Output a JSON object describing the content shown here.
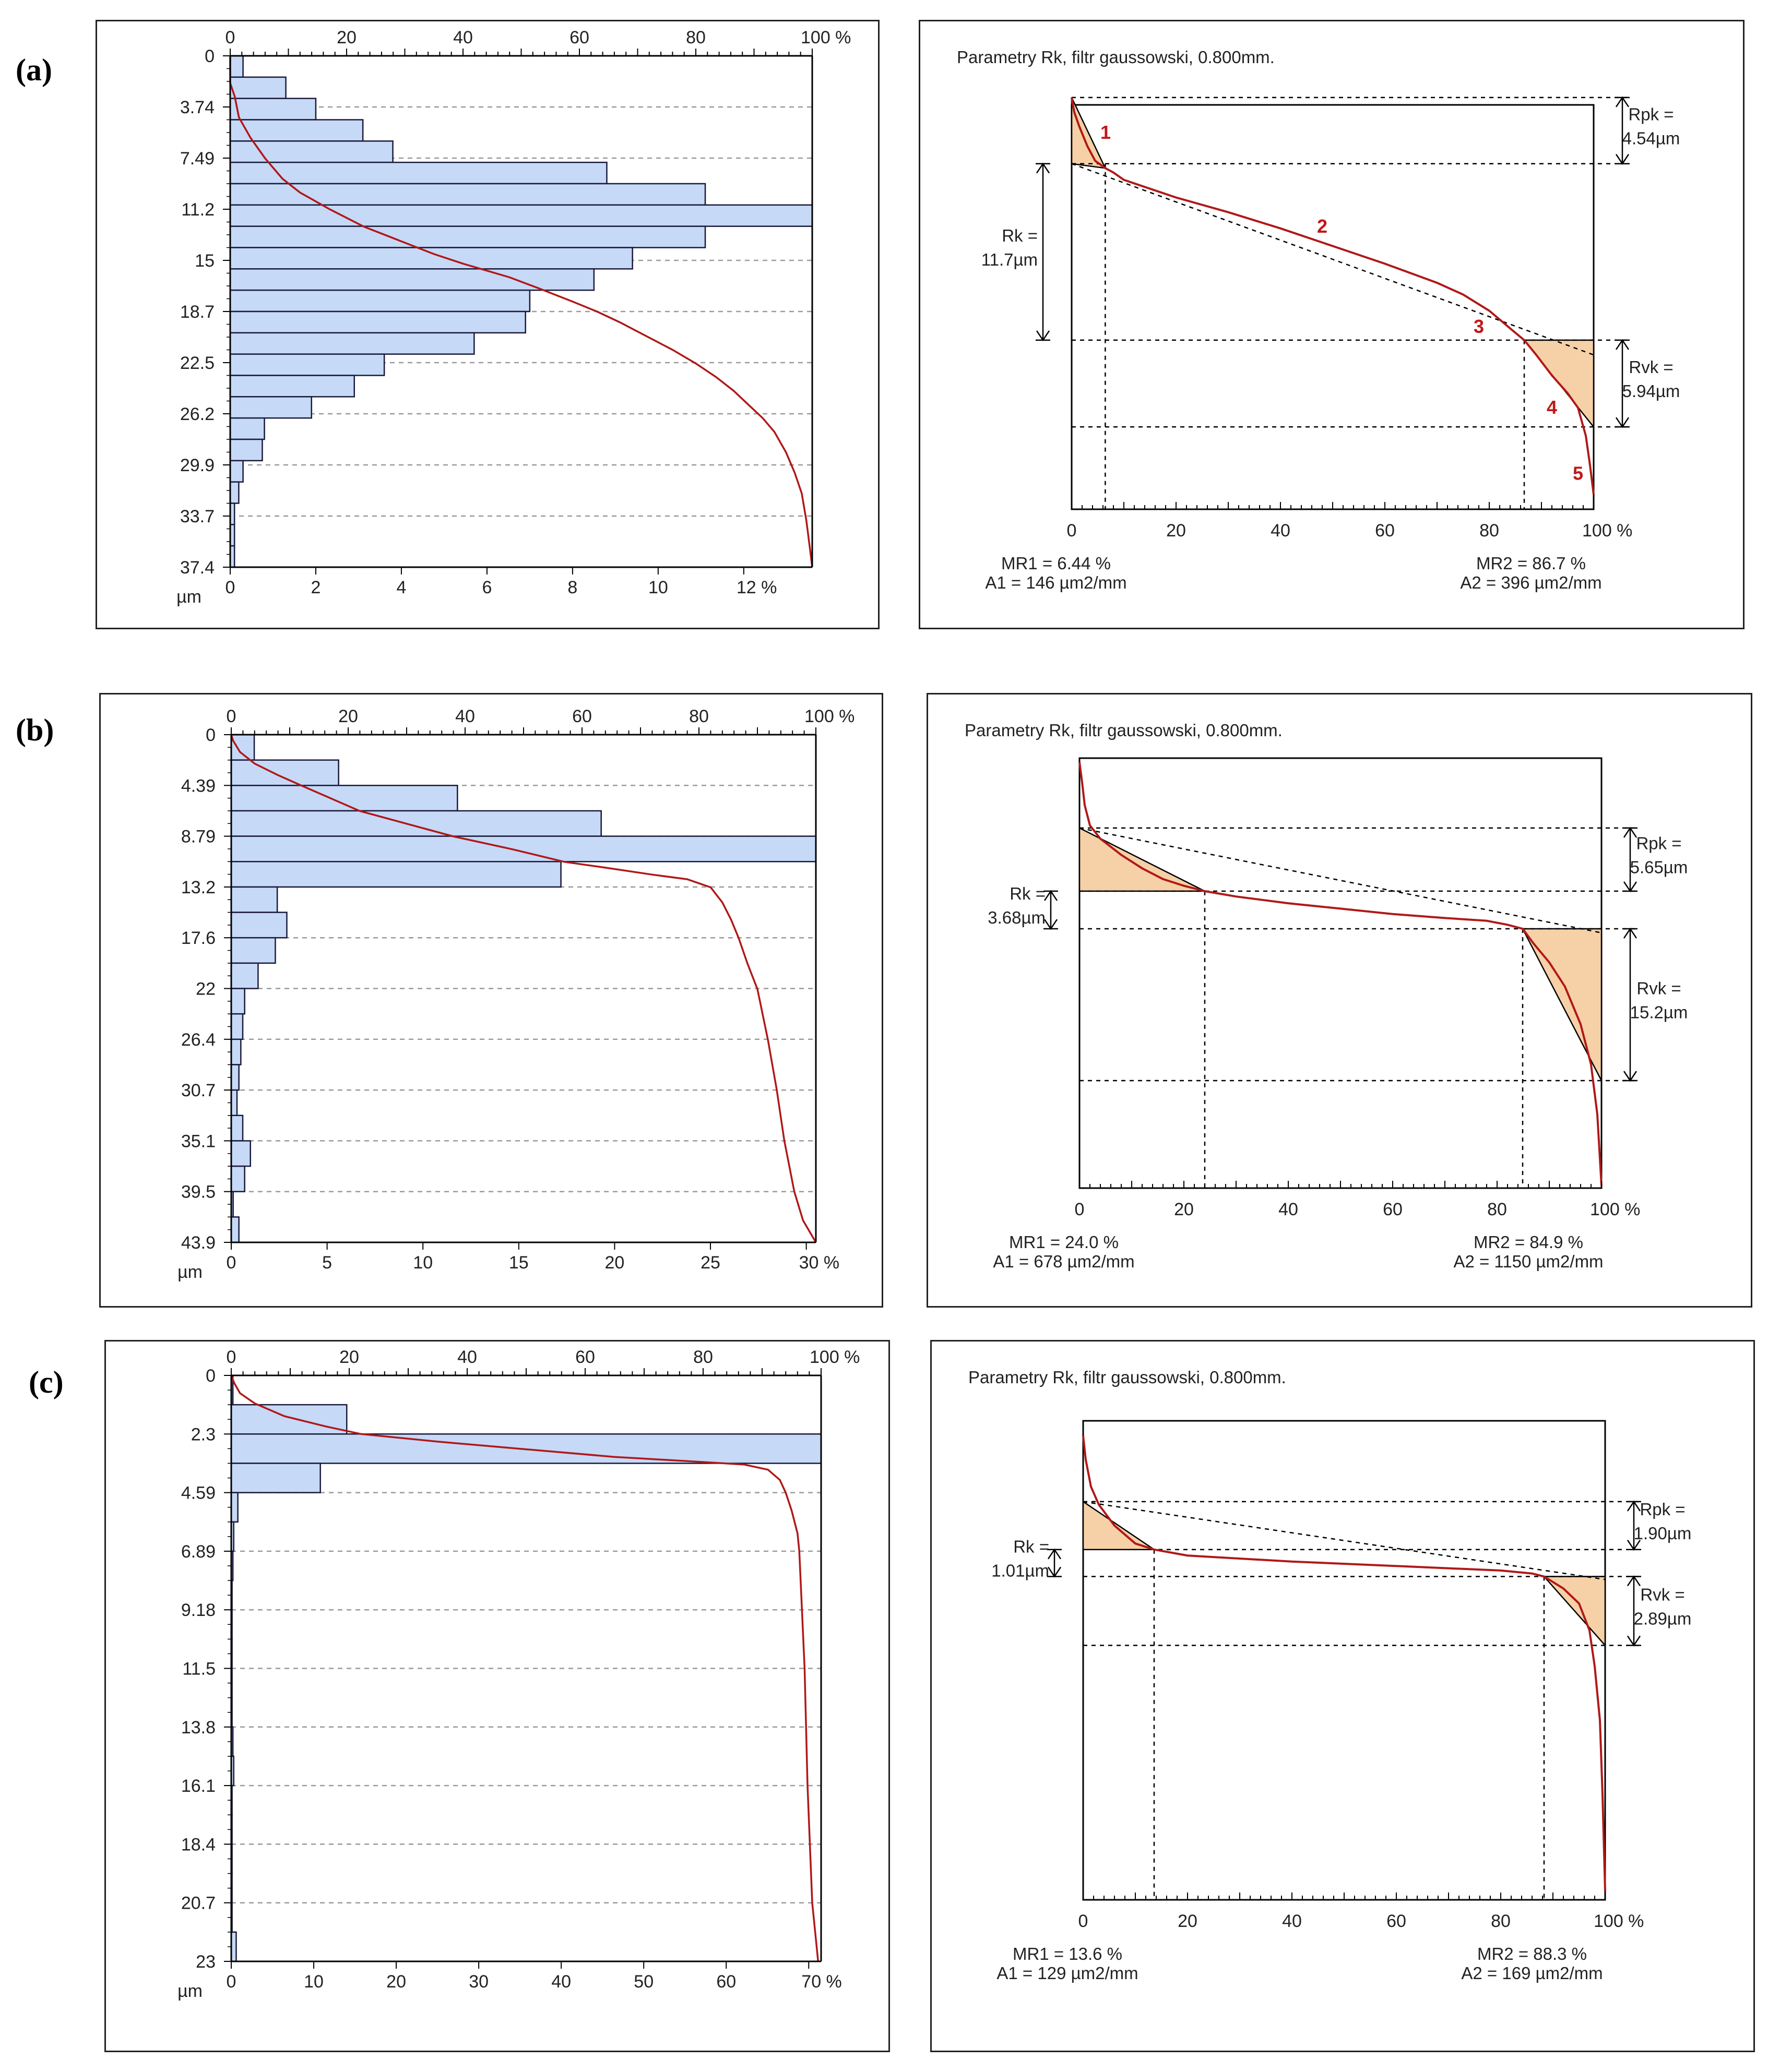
{
  "figure": {
    "panel_labels": [
      "(a)",
      "(b)",
      "(c)"
    ],
    "colors": {
      "bar_fill": "#c6d9f7",
      "bar_stroke": "#1a1a3a",
      "curve": "#b01818",
      "area_fill": "#f6d0a6",
      "grid": "#9a9a9a",
      "annotation": "#c01818"
    }
  },
  "chart_data": [
    {
      "panel": "(a)",
      "type": "bar",
      "orientation": "horizontal",
      "title": "",
      "top_axis": {
        "ticks": [
          "0",
          "20",
          "40",
          "60",
          "80",
          "100 %"
        ],
        "range": [
          0,
          100
        ]
      },
      "bottom_axis": {
        "unit": "µm",
        "ticks": [
          "0",
          "2",
          "4",
          "6",
          "8",
          "10",
          "12 %"
        ],
        "range": [
          0,
          13.6
        ]
      },
      "y_axis": {
        "ticks": [
          "0",
          "3.74",
          "7.49",
          "11.2",
          "15",
          "18.7",
          "22.5",
          "26.2",
          "29.9",
          "33.7",
          "37.4"
        ],
        "range": [
          0,
          37.4
        ]
      },
      "bins": 24,
      "values": [
        0.3,
        1.3,
        2.0,
        3.1,
        3.8,
        8.8,
        11.1,
        13.6,
        11.1,
        9.4,
        8.5,
        7.0,
        6.9,
        5.7,
        3.6,
        2.9,
        1.9,
        0.8,
        0.75,
        0.3,
        0.2,
        0.1,
        0.1,
        0.1
      ],
      "curve": {
        "series": "bearing ratio (%)",
        "points": [
          [
            0,
            0
          ],
          [
            2,
            0
          ],
          [
            3,
            0.8
          ],
          [
            4.5,
            1.5
          ],
          [
            6,
            3.5
          ],
          [
            7.5,
            6
          ],
          [
            9,
            9
          ],
          [
            10,
            12
          ],
          [
            11.2,
            17
          ],
          [
            12.5,
            23
          ],
          [
            13.5,
            29
          ],
          [
            14.5,
            35
          ],
          [
            15.2,
            40
          ],
          [
            16.2,
            48
          ],
          [
            17,
            53
          ],
          [
            18,
            59
          ],
          [
            18.7,
            63
          ],
          [
            19.5,
            67
          ],
          [
            20.5,
            71.5
          ],
          [
            21.5,
            76
          ],
          [
            22.5,
            80
          ],
          [
            23.5,
            83.5
          ],
          [
            24.5,
            86.5
          ],
          [
            25.5,
            89
          ],
          [
            26.5,
            91.5
          ],
          [
            27.5,
            93.5
          ],
          [
            29,
            95.5
          ],
          [
            30.5,
            97
          ],
          [
            32,
            98.2
          ],
          [
            34,
            99
          ],
          [
            36,
            99.6
          ],
          [
            37.4,
            100
          ]
        ]
      }
    },
    {
      "panel": "(a)",
      "type": "line",
      "title": "Parametry Rk, filtr gaussowski, 0.800mm.",
      "x_axis": {
        "ticks": [
          "0",
          "20",
          "40",
          "60",
          "80",
          "100 %"
        ],
        "range": [
          0,
          100
        ]
      },
      "y_range": [
        27.5,
        0
      ],
      "curve": [
        [
          0,
          -0.5
        ],
        [
          0.5,
          0.5
        ],
        [
          1.5,
          1.5
        ],
        [
          3,
          2.8
        ],
        [
          4.5,
          3.8
        ],
        [
          6.44,
          4.3
        ],
        [
          8,
          4.6
        ],
        [
          10,
          5.1
        ],
        [
          20,
          6.3
        ],
        [
          30,
          7.3
        ],
        [
          40,
          8.4
        ],
        [
          50,
          9.6
        ],
        [
          60,
          10.8
        ],
        [
          70,
          12.1
        ],
        [
          75,
          12.9
        ],
        [
          80,
          14.0
        ],
        [
          84,
          15.2
        ],
        [
          86.7,
          16.0
        ],
        [
          89,
          17.0
        ],
        [
          92,
          18.4
        ],
        [
          95,
          19.6
        ],
        [
          97,
          20.6
        ],
        [
          98.5,
          22.5
        ],
        [
          99.3,
          24.5
        ],
        [
          100,
          26.5
        ]
      ],
      "rk_line": [
        [
          0,
          4.0
        ],
        [
          100,
          17.0
        ]
      ],
      "upper_triangle": [
        [
          0,
          -0.5
        ],
        [
          0,
          4.0
        ],
        [
          6.44,
          4.3
        ]
      ],
      "lower_triangle": [
        [
          86.7,
          16.0
        ],
        [
          100,
          16.0
        ],
        [
          100,
          21.9
        ]
      ],
      "levels": {
        "top": -0.5,
        "rk_top": 4.0,
        "rk_bottom": 16.0,
        "rvk_bottom": 21.9
      },
      "mr_lines": [
        6.44,
        86.7
      ],
      "rpk_label": "Rpk =",
      "rpk_value": "4.54µm",
      "rk_label": "Rk =",
      "rk_value": "11.7µm",
      "rvk_label": "Rvk =",
      "rvk_value": "5.94µm",
      "mr1": "MR1 = 6.44 %",
      "a1": "A1 = 146 µm2/mm",
      "mr2": "MR2 = 86.7 %",
      "a2": "A2 = 396 µm2/mm",
      "markers": [
        {
          "label": "1",
          "x": 6.5,
          "y": 2.3
        },
        {
          "label": "2",
          "x": 48,
          "y": 8.7
        },
        {
          "label": "3",
          "x": 78,
          "y": 15.5
        },
        {
          "label": "4",
          "x": 92,
          "y": 21.0
        },
        {
          "label": "5",
          "x": 97,
          "y": 25.5
        }
      ]
    },
    {
      "panel": "(b)",
      "type": "bar",
      "orientation": "horizontal",
      "title": "",
      "top_axis": {
        "ticks": [
          "0",
          "20",
          "40",
          "60",
          "80",
          "100 %"
        ],
        "range": [
          0,
          100
        ]
      },
      "bottom_axis": {
        "unit": "µm",
        "ticks": [
          "0",
          "5",
          "10",
          "15",
          "20",
          "25",
          "30 %"
        ],
        "range": [
          0,
          30.5
        ]
      },
      "y_axis": {
        "ticks": [
          "0",
          "4.39",
          "8.79",
          "13.2",
          "17.6",
          "22",
          "26.4",
          "30.7",
          "35.1",
          "39.5",
          "43.9"
        ],
        "range": [
          0,
          43.9
        ]
      },
      "bins": 20,
      "values": [
        1.2,
        5.6,
        11.8,
        19.3,
        30.5,
        17.2,
        2.4,
        2.9,
        2.3,
        1.4,
        0.7,
        0.6,
        0.5,
        0.4,
        0.3,
        0.6,
        1.0,
        0.7,
        0.1,
        0.4
      ],
      "curve": {
        "series": "bearing ratio (%)",
        "points": [
          [
            0,
            0
          ],
          [
            0.5,
            0.3
          ],
          [
            1.5,
            1.5
          ],
          [
            2.5,
            4
          ],
          [
            3.5,
            8
          ],
          [
            4.4,
            12
          ],
          [
            5.5,
            17
          ],
          [
            6.6,
            22
          ],
          [
            7.7,
            30
          ],
          [
            8.8,
            38
          ],
          [
            9.9,
            48
          ],
          [
            11,
            57
          ],
          [
            11.5,
            64
          ],
          [
            12.1,
            72
          ],
          [
            12.5,
            78
          ],
          [
            13.2,
            82
          ],
          [
            14.5,
            84
          ],
          [
            16,
            85.5
          ],
          [
            17.6,
            86.8
          ],
          [
            19.8,
            88.3
          ],
          [
            22,
            90
          ],
          [
            26.4,
            91.8
          ],
          [
            30.7,
            93.3
          ],
          [
            35.1,
            94.6
          ],
          [
            39.5,
            96.3
          ],
          [
            42,
            97.8
          ],
          [
            43.9,
            100
          ]
        ]
      }
    },
    {
      "panel": "(b)",
      "type": "line",
      "title": "Parametry Rk, filtr gaussowski, 0.800mm.",
      "x_axis": {
        "ticks": [
          "0",
          "20",
          "40",
          "60",
          "80",
          "100 %"
        ],
        "range": [
          0,
          100
        ]
      },
      "y_range": [
        32,
        0
      ],
      "curve": [
        [
          0,
          0.3
        ],
        [
          0.5,
          1.8
        ],
        [
          1,
          3.5
        ],
        [
          2,
          5.0
        ],
        [
          4,
          6.0
        ],
        [
          8,
          7.2
        ],
        [
          12,
          8.2
        ],
        [
          16,
          9.0
        ],
        [
          20,
          9.5
        ],
        [
          24,
          9.9
        ],
        [
          30,
          10.3
        ],
        [
          40,
          10.8
        ],
        [
          50,
          11.2
        ],
        [
          60,
          11.6
        ],
        [
          70,
          11.9
        ],
        [
          78,
          12.1
        ],
        [
          82,
          12.4
        ],
        [
          84.9,
          12.7
        ],
        [
          87,
          13.8
        ],
        [
          90,
          15.2
        ],
        [
          93,
          17.0
        ],
        [
          96,
          19.8
        ],
        [
          98,
          22.8
        ],
        [
          99.2,
          26.5
        ],
        [
          100,
          31.8
        ]
      ],
      "rk_line": [
        [
          0,
          5.2
        ],
        [
          100,
          13.0
        ]
      ],
      "upper_triangle": [
        [
          0,
          5.2
        ],
        [
          0,
          9.9
        ],
        [
          24.0,
          9.9
        ]
      ],
      "lower_triangle": [
        [
          84.9,
          12.7
        ],
        [
          100,
          12.7
        ],
        [
          100,
          24.0
        ]
      ],
      "levels": {
        "top": 5.2,
        "rk_top": 9.9,
        "rk_bottom": 12.7,
        "rvk_bottom": 24.0
      },
      "mr_lines": [
        24.0,
        84.9
      ],
      "rpk_label": "Rpk =",
      "rpk_value": "5.65µm",
      "rk_label": "Rk =",
      "rk_value": "3.68µm",
      "rvk_label": "Rvk =",
      "rvk_value": "15.2µm",
      "mr1": "MR1 = 24.0 %",
      "a1": "A1 = 678 µm2/mm",
      "mr2": "MR2 = 84.9 %",
      "a2": "A2 = 1150 µm2/mm",
      "markers": []
    },
    {
      "panel": "(c)",
      "type": "bar",
      "orientation": "horizontal",
      "title": "",
      "top_axis": {
        "ticks": [
          "0",
          "20",
          "40",
          "60",
          "80",
          "100 %"
        ],
        "range": [
          0,
          100
        ]
      },
      "bottom_axis": {
        "unit": "µm",
        "ticks": [
          "0",
          "10",
          "20",
          "30",
          "40",
          "50",
          "60",
          "70 %"
        ],
        "range": [
          0,
          71.5
        ]
      },
      "y_axis": {
        "ticks": [
          "0",
          "2.3",
          "4.59",
          "6.89",
          "9.18",
          "11.5",
          "13.8",
          "16.1",
          "18.4",
          "20.7",
          "23"
        ],
        "range": [
          0,
          23
        ]
      },
      "bins": 20,
      "values": [
        0.2,
        14.0,
        71.5,
        10.8,
        0.8,
        0.3,
        0.2,
        0.1,
        0.1,
        0.1,
        0.1,
        0.1,
        0.2,
        0.3,
        0.1,
        0.1,
        0.1,
        0.1,
        0.1,
        0.6
      ],
      "curve": {
        "series": "bearing ratio (%)",
        "points": [
          [
            0,
            0
          ],
          [
            0.3,
            0.5
          ],
          [
            0.7,
            1.5
          ],
          [
            1.1,
            4
          ],
          [
            1.6,
            9
          ],
          [
            2.0,
            16
          ],
          [
            2.3,
            22
          ],
          [
            2.6,
            35
          ],
          [
            2.9,
            50
          ],
          [
            3.2,
            65
          ],
          [
            3.4,
            80
          ],
          [
            3.5,
            87
          ],
          [
            3.7,
            91
          ],
          [
            4.1,
            93
          ],
          [
            4.6,
            94
          ],
          [
            5.3,
            95
          ],
          [
            6.2,
            96
          ],
          [
            6.89,
            96.3
          ],
          [
            11.5,
            97.2
          ],
          [
            16.1,
            97.7
          ],
          [
            20.7,
            98.5
          ],
          [
            23,
            99.5
          ]
        ]
      }
    },
    {
      "panel": "(c)",
      "type": "line",
      "title": "Parametry Rk, filtr gaussowski, 0.800mm.",
      "x_axis": {
        "ticks": [
          "0",
          "20",
          "40",
          "60",
          "80",
          "100 %"
        ],
        "range": [
          0,
          100
        ]
      },
      "y_range": [
        16,
        0
      ],
      "curve": [
        [
          0,
          0.5
        ],
        [
          0.5,
          1.3
        ],
        [
          1.5,
          2.2
        ],
        [
          3,
          2.8
        ],
        [
          6,
          3.5
        ],
        [
          10,
          4.1
        ],
        [
          13.6,
          4.3
        ],
        [
          20,
          4.5
        ],
        [
          40,
          4.7
        ],
        [
          60,
          4.85
        ],
        [
          80,
          5.0
        ],
        [
          86,
          5.1
        ],
        [
          88.3,
          5.2
        ],
        [
          92,
          5.6
        ],
        [
          95,
          6.1
        ],
        [
          97,
          7.0
        ],
        [
          98,
          8.2
        ],
        [
          99,
          10
        ],
        [
          99.5,
          12.5
        ],
        [
          100,
          15.7
        ]
      ],
      "rk_line": [
        [
          0,
          2.7
        ],
        [
          100,
          5.3
        ]
      ],
      "upper_triangle": [
        [
          0,
          2.7
        ],
        [
          0,
          4.3
        ],
        [
          13.6,
          4.3
        ]
      ],
      "lower_triangle": [
        [
          88.3,
          5.2
        ],
        [
          100,
          5.2
        ],
        [
          100,
          7.5
        ]
      ],
      "levels": {
        "top": 2.7,
        "rk_top": 4.3,
        "rk_bottom": 5.2,
        "rvk_bottom": 7.5
      },
      "mr_lines": [
        13.6,
        88.3
      ],
      "rpk_label": "Rpk =",
      "rpk_value": "1.90µm",
      "rk_label": "Rk =",
      "rk_value": "1.01µm",
      "rvk_label": "Rvk =",
      "rvk_value": "2.89µm",
      "mr1": "MR1 = 13.6 %",
      "a1": "A1 = 129 µm2/mm",
      "mr2": "MR2 = 88.3 %",
      "a2": "A2 = 169 µm2/mm",
      "markers": []
    }
  ]
}
